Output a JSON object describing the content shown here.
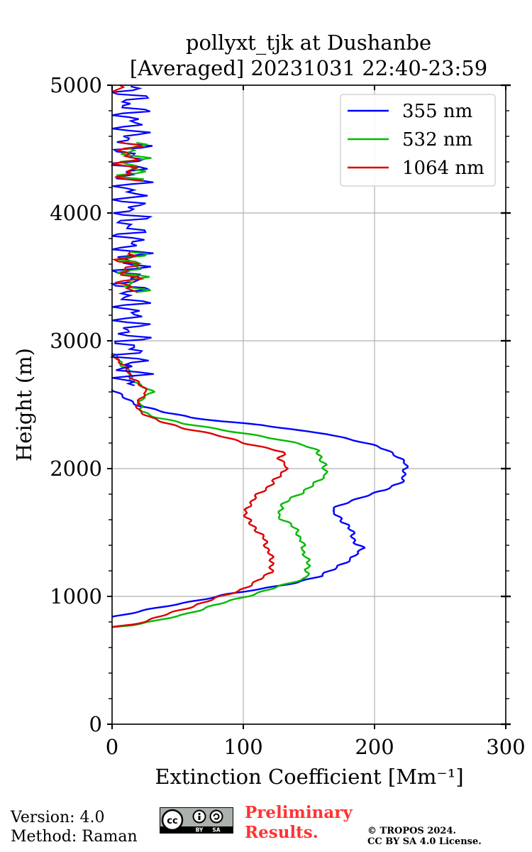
{
  "chart_data": {
    "type": "line",
    "title": "pollyxt_tjk at Dushanbe",
    "subtitle": "[Averaged] 20231031 22:40-23:59",
    "xlabel": "Extinction Coefficient [Mm⁻¹]",
    "ylabel": "Height (m)",
    "xlim": [
      0,
      300
    ],
    "ylim": [
      0,
      5000
    ],
    "xticks": [
      0,
      100,
      200,
      300
    ],
    "yticks": [
      0,
      1000,
      2000,
      3000,
      4000,
      5000
    ],
    "grid": true,
    "legend_position": "top-right",
    "series": [
      {
        "name": "355 nm",
        "color": "#0000ff",
        "points": [
          [
            0,
            840
          ],
          [
            10,
            860
          ],
          [
            25,
            890
          ],
          [
            45,
            930
          ],
          [
            65,
            970
          ],
          [
            90,
            1020
          ],
          [
            115,
            1060
          ],
          [
            140,
            1110
          ],
          [
            160,
            1160
          ],
          [
            172,
            1240
          ],
          [
            183,
            1290
          ],
          [
            190,
            1380
          ],
          [
            186,
            1420
          ],
          [
            183,
            1480
          ],
          [
            180,
            1560
          ],
          [
            172,
            1620
          ],
          [
            167,
            1670
          ],
          [
            176,
            1720
          ],
          [
            190,
            1780
          ],
          [
            208,
            1830
          ],
          [
            218,
            1880
          ],
          [
            222,
            1930
          ],
          [
            224,
            1980
          ],
          [
            223,
            2040
          ],
          [
            218,
            2100
          ],
          [
            208,
            2150
          ],
          [
            190,
            2210
          ],
          [
            165,
            2270
          ],
          [
            140,
            2300
          ],
          [
            115,
            2340
          ],
          [
            85,
            2370
          ],
          [
            60,
            2400
          ],
          [
            40,
            2440
          ],
          [
            22,
            2490
          ],
          [
            12,
            2540
          ],
          [
            5,
            2580
          ],
          [
            0,
            2620
          ]
        ]
      },
      {
        "name": "532 nm",
        "color": "#00bb00",
        "points": [
          [
            0,
            760
          ],
          [
            15,
            775
          ],
          [
            35,
            810
          ],
          [
            55,
            860
          ],
          [
            75,
            920
          ],
          [
            95,
            980
          ],
          [
            115,
            1040
          ],
          [
            135,
            1100
          ],
          [
            148,
            1150
          ],
          [
            150,
            1240
          ],
          [
            148,
            1290
          ],
          [
            145,
            1400
          ],
          [
            142,
            1500
          ],
          [
            136,
            1560
          ],
          [
            127,
            1630
          ],
          [
            128,
            1700
          ],
          [
            136,
            1760
          ],
          [
            145,
            1820
          ],
          [
            155,
            1880
          ],
          [
            162,
            1950
          ],
          [
            163,
            2030
          ],
          [
            157,
            2080
          ],
          [
            158,
            2140
          ],
          [
            148,
            2180
          ],
          [
            125,
            2230
          ],
          [
            105,
            2270
          ],
          [
            80,
            2310
          ],
          [
            55,
            2350
          ],
          [
            35,
            2400
          ],
          [
            22,
            2450
          ],
          [
            20,
            2510
          ],
          [
            30,
            2600
          ],
          [
            22,
            2650
          ],
          [
            15,
            2700
          ],
          [
            12,
            2760
          ],
          [
            8,
            2820
          ],
          [
            0,
            2900
          ]
        ]
      },
      {
        "name": "1064 nm",
        "color": "#dd0000",
        "points": [
          [
            0,
            760
          ],
          [
            15,
            780
          ],
          [
            30,
            820
          ],
          [
            45,
            870
          ],
          [
            60,
            920
          ],
          [
            78,
            980
          ],
          [
            95,
            1040
          ],
          [
            110,
            1110
          ],
          [
            120,
            1190
          ],
          [
            123,
            1260
          ],
          [
            120,
            1320
          ],
          [
            118,
            1400
          ],
          [
            115,
            1460
          ],
          [
            110,
            1530
          ],
          [
            104,
            1580
          ],
          [
            102,
            1640
          ],
          [
            104,
            1720
          ],
          [
            112,
            1800
          ],
          [
            120,
            1870
          ],
          [
            128,
            1940
          ],
          [
            133,
            2030
          ],
          [
            128,
            2080
          ],
          [
            130,
            2130
          ],
          [
            118,
            2160
          ],
          [
            102,
            2200
          ],
          [
            80,
            2260
          ],
          [
            58,
            2310
          ],
          [
            40,
            2360
          ],
          [
            28,
            2400
          ],
          [
            22,
            2450
          ],
          [
            18,
            2520
          ],
          [
            28,
            2600
          ],
          [
            20,
            2660
          ],
          [
            15,
            2720
          ],
          [
            10,
            2790
          ],
          [
            5,
            2850
          ],
          [
            0,
            2900
          ]
        ]
      }
    ]
  },
  "footer": {
    "version": "Version: 4.0",
    "method": "Method: Raman",
    "preliminary_line1": "Preliminary",
    "preliminary_line2": "Results.",
    "copyright_line1": "© TROPOS 2024.",
    "copyright_line2": "CC BY SA 4.0 License.",
    "badge_by": "BY",
    "badge_sa": "SA"
  }
}
